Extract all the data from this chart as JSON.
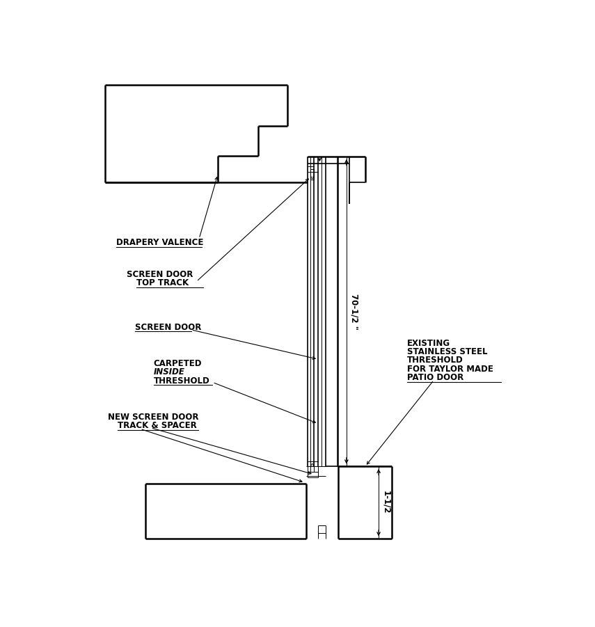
{
  "bg_color": "#ffffff",
  "line_color": "#000000",
  "lw": 1.2,
  "lw_thin": 0.7,
  "lw_thick": 1.8,
  "labels": {
    "drapery_valence": "DRAPERY VALENCE",
    "screen_door_top_track_1": "SCREEN DOOR",
    "screen_door_top_track_2": "TOP TRACK",
    "screen_door": "SCREEN DOOR",
    "carpeted": "CARPETED",
    "inside": "INSIDE",
    "threshold": "THRESHOLD",
    "new_screen_door_1": "NEW SCREEN DOOR",
    "new_screen_door_2": "TRACK & SPACER",
    "existing_1": "EXISTING",
    "existing_2": "STAINLESS STEEL",
    "existing_3": "THRESHOLD",
    "existing_4": "FOR TAYLOR MADE",
    "existing_5": "PATIO DOOR",
    "dim_70": "70-1/2 \"",
    "dim_1_5": "1-1/2"
  }
}
